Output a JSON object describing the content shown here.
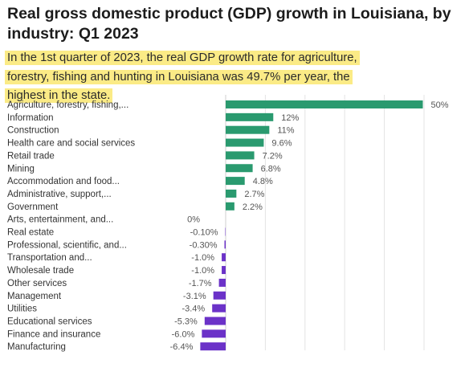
{
  "header": {
    "title": "Real gross domestic product (GDP) growth in Louisiana, by industry: Q1 2023",
    "subtitle": "In the 1st quarter of 2023, the real GDP growth rate for agriculture, forestry, fishing and hunting in Louisiana was 49.7% per year, the highest in the state."
  },
  "colors": {
    "positive": "#2a9a6f",
    "negative": "#6b32c8",
    "highlight": "#fbeb86",
    "grid": "#e3e3e3"
  },
  "chart_data": {
    "type": "bar",
    "orientation": "horizontal",
    "title": "Real gross domestic product (GDP) growth in Louisiana, by industry: Q1 2023",
    "xlabel": "",
    "ylabel": "",
    "xlim": [
      -6.4,
      50
    ],
    "grid": true,
    "categories": [
      "Agriculture, forestry, fishing,...",
      "Information",
      "Construction",
      "Health care and social services",
      "Retail trade",
      "Mining",
      "Accommodation and food...",
      "Administrative, support,...",
      "Government",
      "Arts, entertainment, and...",
      "Real estate",
      "Professional, scientific, and...",
      "Transportation and...",
      "Wholesale trade",
      "Other services",
      "Management",
      "Utilities",
      "Educational services",
      "Finance and insurance",
      "Manufacturing"
    ],
    "values": [
      49.7,
      12,
      11,
      9.6,
      7.2,
      6.8,
      4.8,
      2.7,
      2.2,
      0,
      -0.1,
      -0.3,
      -1.0,
      -1.0,
      -1.7,
      -3.1,
      -3.4,
      -5.3,
      -6.0,
      -6.4
    ],
    "labels": [
      "50%",
      "12%",
      "11%",
      "9.6%",
      "7.2%",
      "6.8%",
      "4.8%",
      "2.7%",
      "2.2%",
      "0%",
      "-0.10%",
      "-0.30%",
      "-1.0%",
      "-1.0%",
      "-1.7%",
      "-3.1%",
      "-3.4%",
      "-5.3%",
      "-6.0%",
      "-6.4%"
    ]
  }
}
